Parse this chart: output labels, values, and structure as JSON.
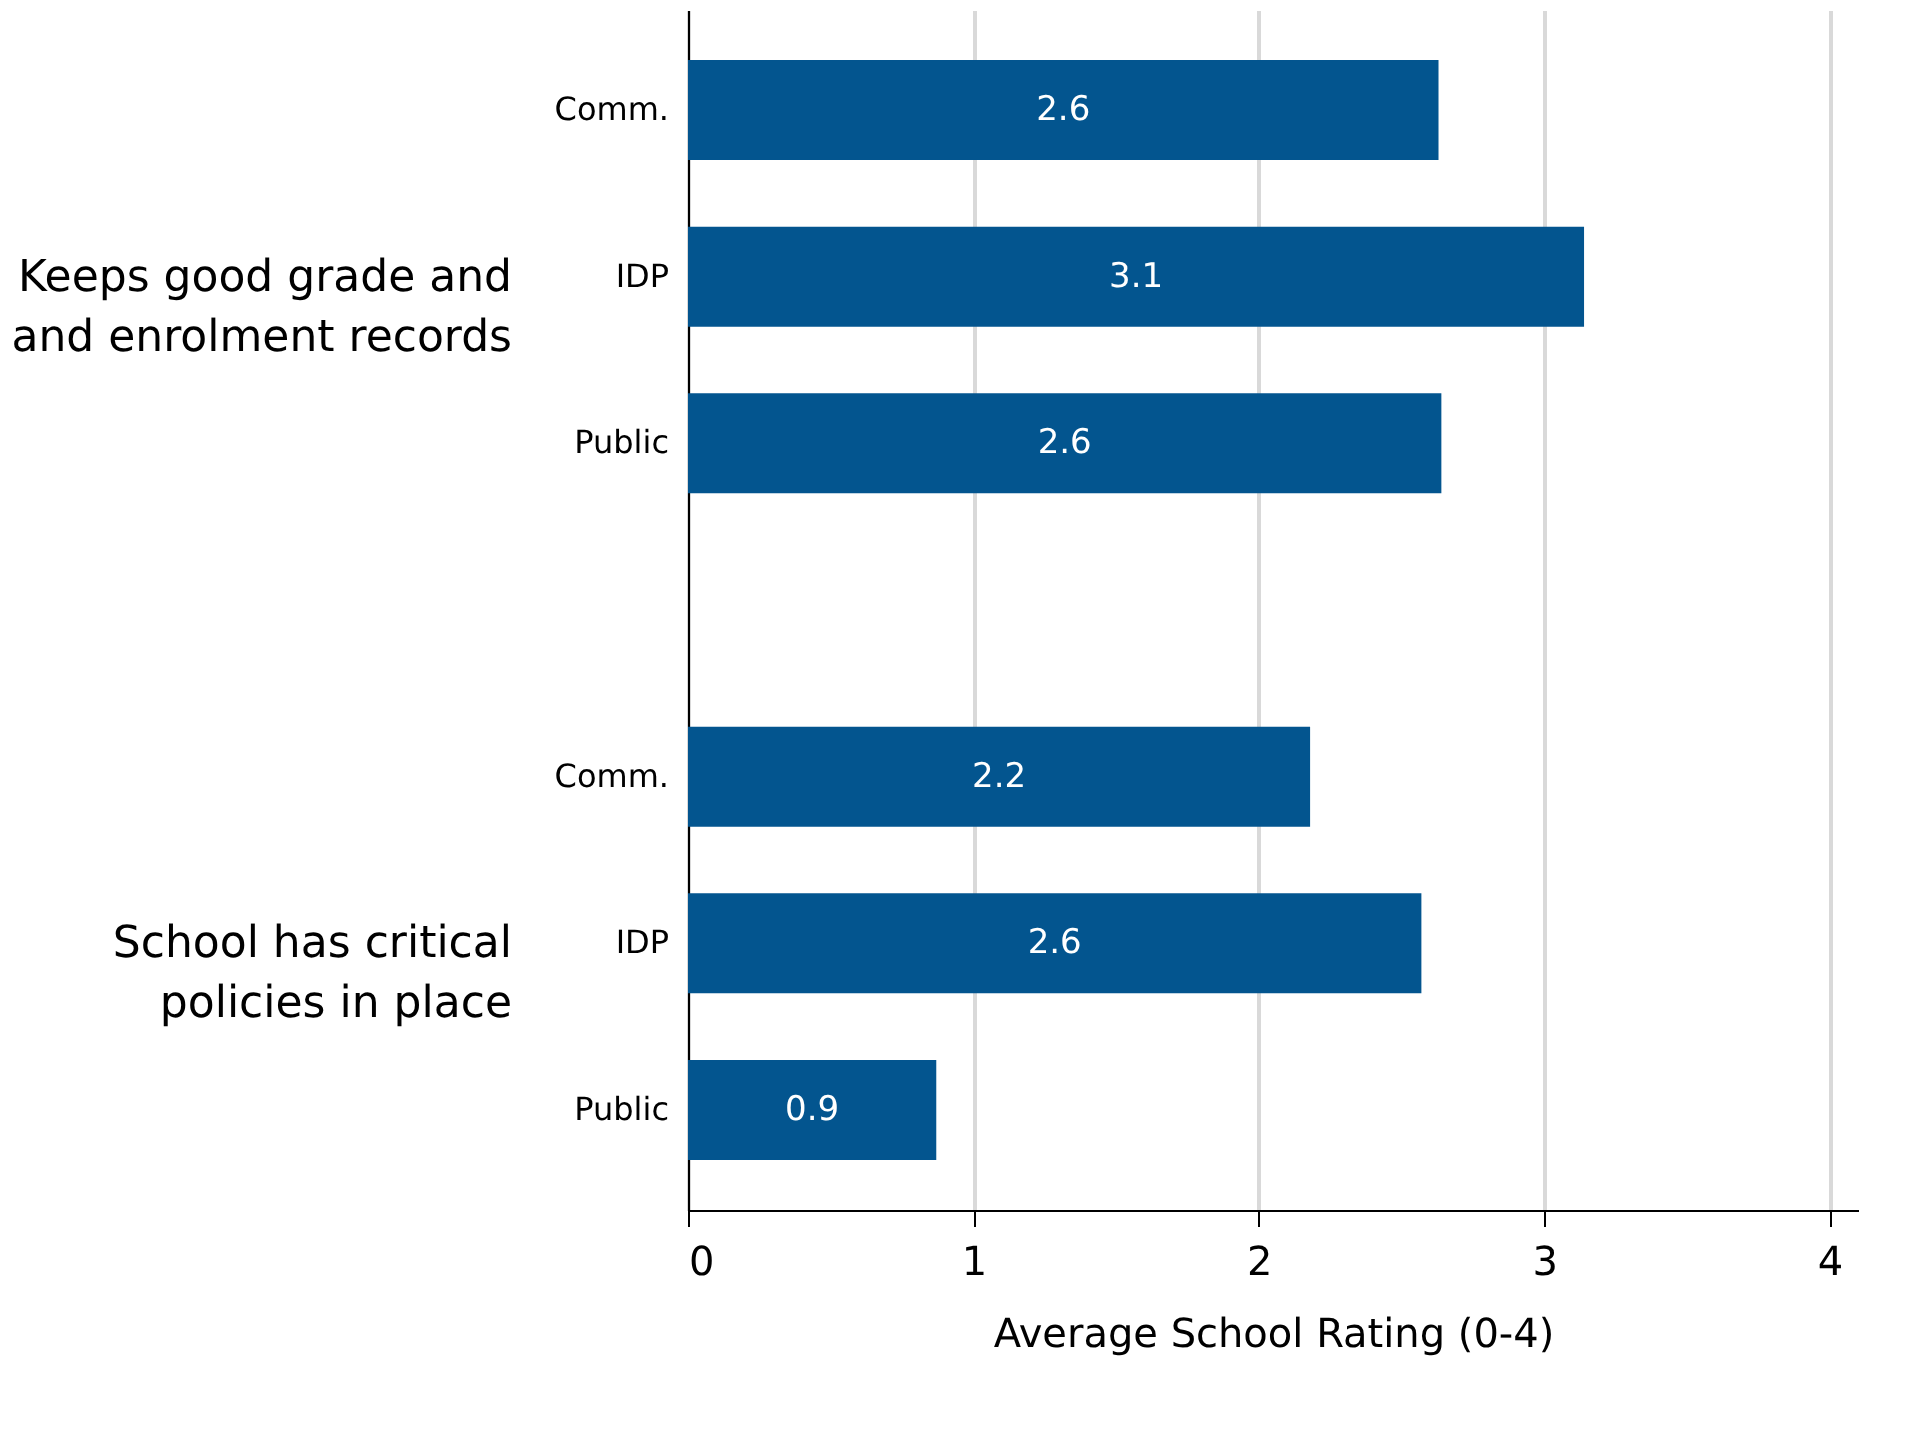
{
  "chart_data": {
    "type": "bar",
    "orientation": "horizontal",
    "categories": [
      "Comm.",
      "IDP",
      "Public",
      "Comm.",
      "IDP",
      "Public"
    ],
    "values": [
      2.63,
      3.14,
      2.64,
      2.18,
      2.57,
      0.87
    ],
    "value_labels": [
      "2.6",
      "3.1",
      "2.6",
      "2.2",
      "2.6",
      "0.9"
    ],
    "color": "#03558f",
    "xlim": [
      0,
      4.1
    ],
    "xticks": [
      0,
      1,
      2,
      3,
      4
    ],
    "xlabel": "Average School Rating (0-4)",
    "grid": "x",
    "annotations": [
      "Keeps good grade and\nand enrolment records",
      "School has critical\npolicies in place"
    ]
  }
}
